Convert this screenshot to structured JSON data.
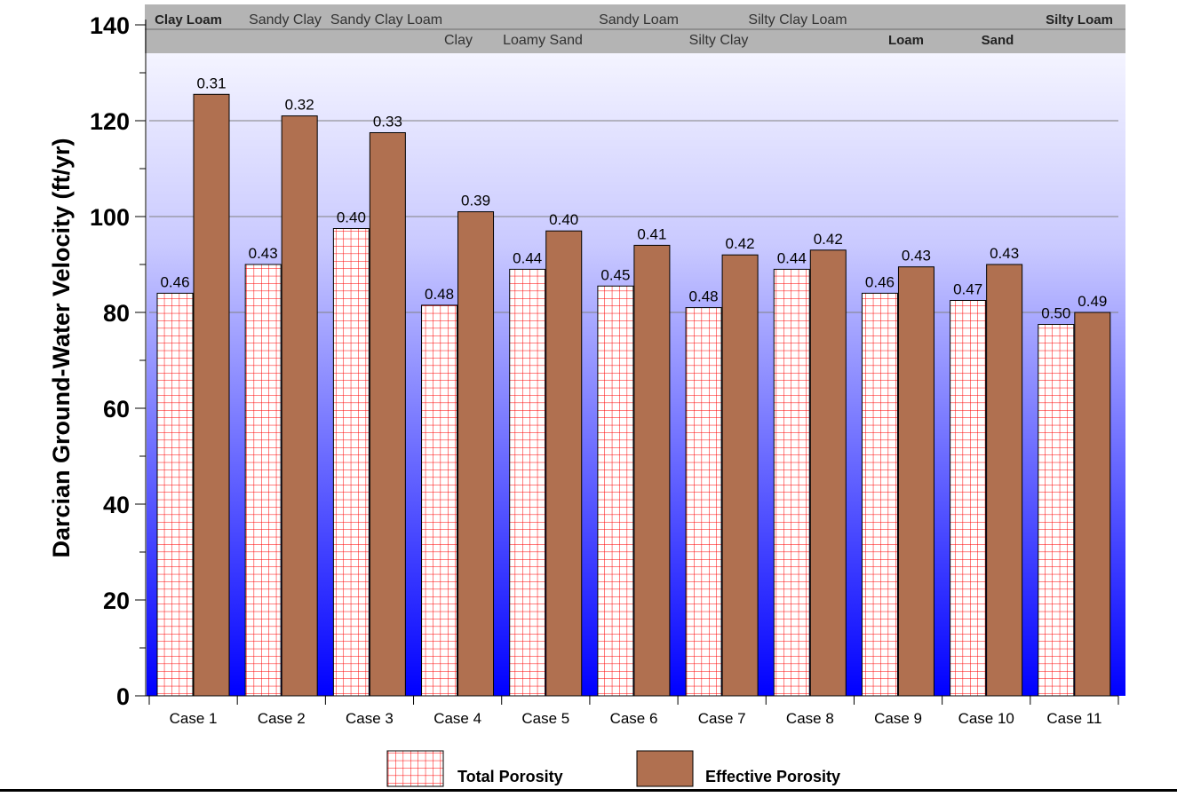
{
  "chart_data": {
    "type": "bar",
    "title": "",
    "xlabel": "",
    "ylabel": "Darcian Ground-Water Velocity (ft/yr)",
    "ylim": [
      0,
      140
    ],
    "yticks": [
      "0",
      "20",
      "40",
      "60",
      "80",
      "100",
      "120",
      "140"
    ],
    "grid": true,
    "legend_position": "bottom",
    "categories": [
      "Case 1",
      "Case 2",
      "Case 3",
      "Case 4",
      "Case 5",
      "Case 6",
      "Case 7",
      "Case 8",
      "Case 9",
      "Case 10",
      "Case 11"
    ],
    "series": [
      {
        "name": "Total Porosity",
        "pattern": "red-grid",
        "color": "#ff0000",
        "values": [
          84,
          90,
          97.5,
          81.5,
          89,
          85.5,
          81,
          89,
          84,
          82.5,
          77.5
        ],
        "labels": [
          "0.46",
          "0.43",
          "0.40",
          "0.48",
          "0.44",
          "0.45",
          "0.48",
          "0.44",
          "0.46",
          "0.47",
          "0.50"
        ]
      },
      {
        "name": "Effective Porosity",
        "pattern": "solid",
        "color": "#b07050",
        "values": [
          125.5,
          121,
          117.5,
          101,
          97,
          94,
          92,
          93,
          89.5,
          90,
          80
        ],
        "labels": [
          "0.31",
          "0.32",
          "0.33",
          "0.39",
          "0.40",
          "0.41",
          "0.42",
          "0.42",
          "0.43",
          "0.43",
          "0.49"
        ]
      }
    ],
    "soil_labels": [
      {
        "text": "Clay Loam",
        "row": 1,
        "case": 1,
        "bold": true
      },
      {
        "text": "Sandy Clay",
        "row": 1,
        "case": 2,
        "bold": false
      },
      {
        "text": "Sandy Clay Loam",
        "row": 1,
        "case": 3,
        "bold": false
      },
      {
        "text": "Clay",
        "row": 2,
        "case": 4,
        "bold": false
      },
      {
        "text": "Loamy Sand",
        "row": 2,
        "case": 5,
        "bold": false
      },
      {
        "text": "Sandy Loam",
        "row": 1,
        "case": 6,
        "bold": false
      },
      {
        "text": "Silty Clay",
        "row": 2,
        "case": 7,
        "bold": false
      },
      {
        "text": "Silty Clay Loam",
        "row": 1,
        "case": 8,
        "bold": false
      },
      {
        "text": "Loam",
        "row": 2,
        "case": 9,
        "bold": true
      },
      {
        "text": "Sand",
        "row": 2,
        "case": 10,
        "bold": true
      },
      {
        "text": "Silty Loam",
        "row": 1,
        "case": 11,
        "bold": true
      }
    ],
    "background_gradient": [
      "#ffffff",
      "#0000ff"
    ],
    "header_band_color": "#b4b4b4"
  }
}
